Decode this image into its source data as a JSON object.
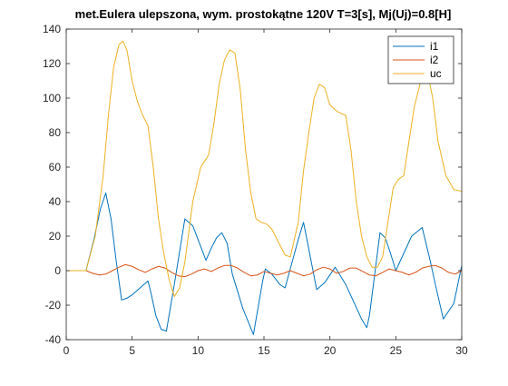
{
  "chart_data": {
    "type": "line",
    "title": "met.Eulera ulepszona, wym. prostokątne 120V T=3[s], Mj(Uj)=0.8[H]",
    "xlabel": "",
    "ylabel": "",
    "xlim": [
      0,
      30
    ],
    "ylim": [
      -40,
      140
    ],
    "xticks": [
      0,
      5,
      10,
      15,
      20,
      25,
      30
    ],
    "yticks": [
      -40,
      -20,
      0,
      20,
      40,
      60,
      80,
      100,
      120,
      140
    ],
    "grid": false,
    "legend_position": "top-right",
    "series": [
      {
        "name": "i1",
        "color": "#0072BD",
        "x": [
          0,
          1.5,
          2.1,
          2.6,
          3.0,
          3.4,
          3.8,
          4.2,
          4.6,
          5.0,
          5.6,
          6.2,
          6.4,
          6.8,
          7.2,
          7.6,
          8.2,
          9.0,
          9.6,
          10.0,
          10.6,
          11.0,
          11.4,
          11.8,
          12.2,
          12.6,
          13.4,
          14.2,
          14.9,
          15.1,
          15.6,
          16.2,
          16.6,
          17.6,
          18.0,
          19.0,
          19.6,
          20.4,
          21.2,
          22.4,
          22.8,
          23.0,
          23.8,
          24.2,
          24.6,
          25.0,
          25.6,
          26.2,
          27.0,
          27.6,
          28.0,
          28.6,
          29.4,
          30.0
        ],
        "y": [
          0,
          0,
          18,
          36,
          45,
          30,
          5,
          -17,
          -16,
          -14,
          -10,
          -6,
          -12,
          -26,
          -34,
          -35,
          -8,
          30,
          26,
          18,
          6,
          13,
          19,
          22,
          16,
          -2,
          -22,
          -37,
          -6,
          1,
          -2,
          -8,
          -10,
          18,
          28,
          -11,
          -7,
          2,
          -8,
          -28,
          -33,
          -26,
          22,
          19,
          10,
          0,
          10,
          20,
          25,
          6,
          -8,
          -28,
          -19,
          3
        ]
      },
      {
        "name": "i2",
        "color": "#D95319",
        "x": [
          0,
          1.5,
          2.0,
          2.5,
          3.0,
          3.5,
          4.0,
          4.5,
          5.0,
          5.5,
          6.0,
          6.5,
          7.0,
          7.5,
          8.0,
          8.5,
          9.0,
          9.5,
          10.0,
          10.5,
          11.0,
          11.5,
          12.0,
          12.5,
          13.0,
          13.5,
          14.0,
          14.5,
          15.0,
          15.5,
          16.0,
          16.5,
          17.0,
          17.5,
          18.0,
          18.5,
          19.0,
          19.5,
          20.0,
          20.5,
          21.0,
          21.5,
          22.0,
          22.5,
          23.0,
          23.5,
          24.0,
          24.5,
          25.0,
          25.5,
          26.0,
          26.5,
          27.0,
          27.5,
          28.0,
          28.5,
          29.0,
          29.5,
          30.0
        ],
        "y": [
          0,
          0,
          -1.5,
          -2.5,
          -2,
          0,
          2,
          3.5,
          2.5,
          0.5,
          -1,
          1,
          2.5,
          1.5,
          -1,
          -3,
          -3.5,
          -2,
          0,
          1,
          -0.5,
          1.5,
          3,
          3,
          1.5,
          -1,
          -3,
          -2.5,
          -0.5,
          -1.5,
          -2.5,
          -1.5,
          0,
          -1.5,
          -3,
          -2,
          0.5,
          2,
          1,
          -1.5,
          -0.5,
          1.5,
          1.5,
          -0.5,
          -2.5,
          -3,
          -1,
          1,
          0,
          -1,
          -2.5,
          -1,
          1.5,
          2.5,
          3,
          1.5,
          -1,
          -2,
          0
        ]
      },
      {
        "name": "uc",
        "color": "#EDB120",
        "x": [
          0,
          1.5,
          2.2,
          2.8,
          3.2,
          3.6,
          4.0,
          4.3,
          4.6,
          5.0,
          5.4,
          5.8,
          6.2,
          6.6,
          7.0,
          7.4,
          7.8,
          8.2,
          8.6,
          9.0,
          9.6,
          10.2,
          10.8,
          11.2,
          11.6,
          12.0,
          12.4,
          12.8,
          13.2,
          13.6,
          14.0,
          14.4,
          14.8,
          15.2,
          15.6,
          16.2,
          16.6,
          17.0,
          17.6,
          18.0,
          18.4,
          18.8,
          19.2,
          19.6,
          20.0,
          20.6,
          21.2,
          21.6,
          22.0,
          22.4,
          22.8,
          23.2,
          23.6,
          24.0,
          24.4,
          24.8,
          25.2,
          25.6,
          26.0,
          26.4,
          27.0,
          27.4,
          27.8,
          28.2,
          28.8,
          29.4,
          30.0
        ],
        "y": [
          0,
          0,
          20,
          55,
          90,
          118,
          131,
          133,
          128,
          110,
          98,
          90,
          84,
          60,
          30,
          10,
          -5,
          -15,
          -10,
          5,
          40,
          60,
          67,
          85,
          108,
          122,
          128,
          126,
          105,
          70,
          45,
          30,
          28,
          27,
          24,
          15,
          9,
          8,
          28,
          58,
          80,
          100,
          108,
          106,
          96,
          92,
          90,
          70,
          40,
          20,
          8,
          2,
          2,
          8,
          28,
          48,
          53,
          55,
          75,
          95,
          113,
          115,
          100,
          75,
          55,
          47,
          46
        ]
      }
    ]
  }
}
